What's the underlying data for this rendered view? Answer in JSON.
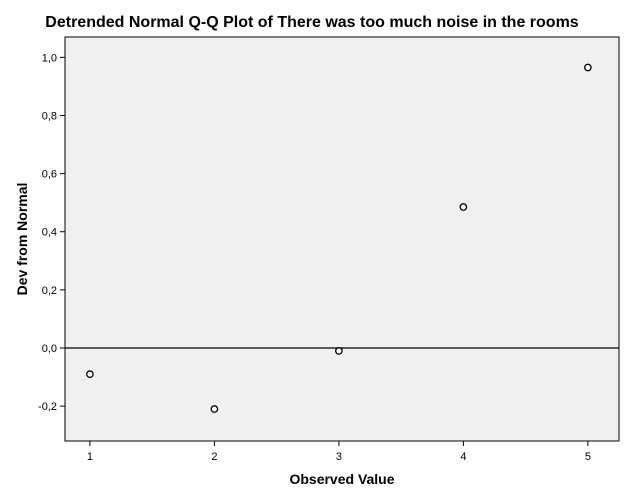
{
  "chart_data": {
    "type": "scatter",
    "title": "Detrended Normal Q-Q Plot of There was too much noise in the rooms",
    "xlabel": "Observed Value",
    "ylabel": "Dev from Normal",
    "xlim": [
      0.8,
      5.25
    ],
    "ylim": [
      -0.32,
      1.07
    ],
    "x_ticks": [
      1,
      2,
      3,
      4,
      5
    ],
    "x_tick_labels": [
      "1",
      "2",
      "3",
      "4",
      "5"
    ],
    "y_ticks": [
      -0.2,
      0.0,
      0.2,
      0.4,
      0.6,
      0.8,
      1.0
    ],
    "y_tick_labels": [
      "-0,2",
      "0,0",
      "0,2",
      "0,4",
      "0,6",
      "0,8",
      "1,0"
    ],
    "reference_line_y": 0,
    "grid": false,
    "legend": "none",
    "points": [
      {
        "x": 1,
        "y": -0.09
      },
      {
        "x": 2,
        "y": -0.21
      },
      {
        "x": 3,
        "y": -0.01
      },
      {
        "x": 4,
        "y": 0.485
      },
      {
        "x": 5,
        "y": 0.965
      }
    ]
  },
  "colors": {
    "plot_background": "#f0f0f0",
    "page_background": "#ffffff",
    "axis": "#000000",
    "marker_edge": "#000000",
    "marker_fill": "#ffffff",
    "reference_line": "#000000"
  }
}
